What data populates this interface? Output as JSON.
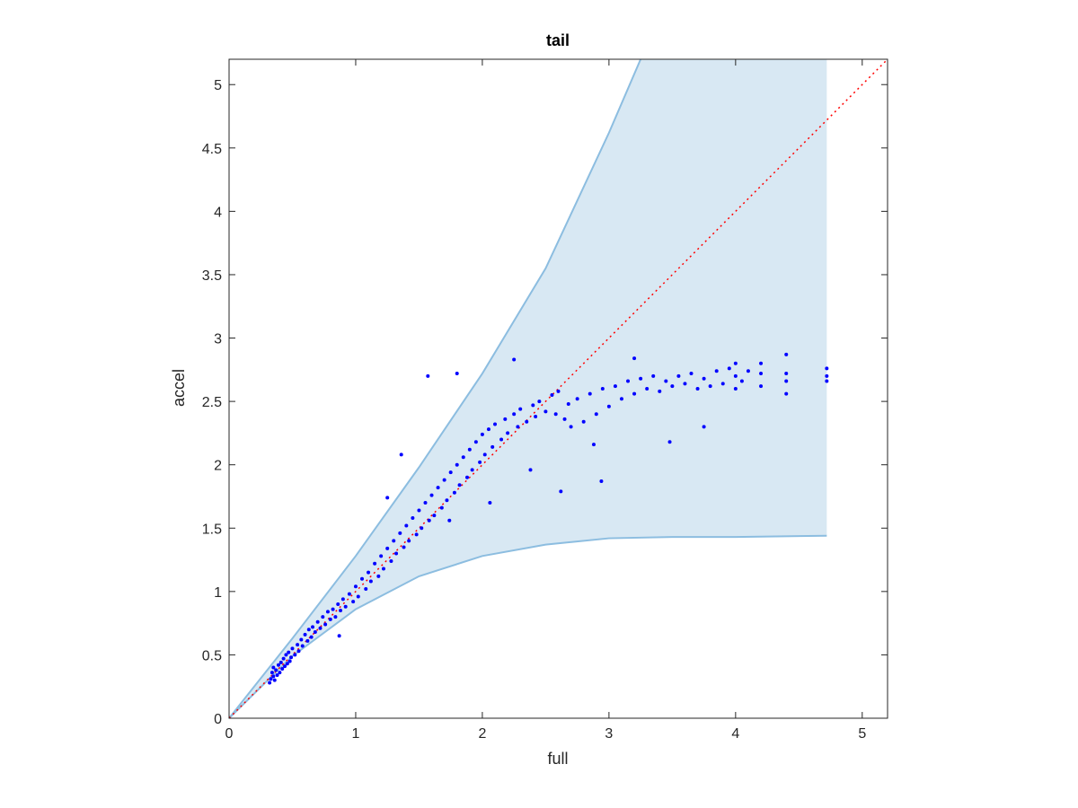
{
  "chart_data": {
    "type": "scatter",
    "title": "tail",
    "xlabel": "full",
    "ylabel": "accel",
    "xlim": [
      0,
      5.2
    ],
    "ylim": [
      0,
      5.2
    ],
    "xticks": [
      "0",
      "1",
      "2",
      "3",
      "4",
      "5"
    ],
    "yticks": [
      "0",
      "0.5",
      "1",
      "1.5",
      "2",
      "2.5",
      "3",
      "3.5",
      "4",
      "4.5",
      "5"
    ],
    "grid": false,
    "band": {
      "upper": [
        [
          0,
          0
        ],
        [
          0.5,
          0.63
        ],
        [
          1,
          1.28
        ],
        [
          1.5,
          1.98
        ],
        [
          2,
          2.72
        ],
        [
          2.5,
          3.55
        ],
        [
          3,
          4.62
        ],
        [
          3.25,
          5.2
        ],
        [
          4.72,
          5.2
        ]
      ],
      "lower": [
        [
          0,
          0
        ],
        [
          0.5,
          0.49
        ],
        [
          1,
          0.86
        ],
        [
          1.5,
          1.12
        ],
        [
          2,
          1.28
        ],
        [
          2.5,
          1.37
        ],
        [
          3,
          1.42
        ],
        [
          3.5,
          1.43
        ],
        [
          4,
          1.43
        ],
        [
          4.72,
          1.44
        ]
      ],
      "fill_color": "#d8e8f3",
      "edge_color": "#8cbde0"
    },
    "reference_line": {
      "from": [
        0,
        0
      ],
      "to": [
        5.2,
        5.2
      ],
      "color": "#ff0000",
      "style": "dotted"
    },
    "series": [
      {
        "color": "#0000ff",
        "points": [
          [
            0.32,
            0.28
          ],
          [
            0.33,
            0.31
          ],
          [
            0.34,
            0.36
          ],
          [
            0.35,
            0.33
          ],
          [
            0.35,
            0.4
          ],
          [
            0.36,
            0.3
          ],
          [
            0.37,
            0.38
          ],
          [
            0.38,
            0.34
          ],
          [
            0.39,
            0.42
          ],
          [
            0.4,
            0.36
          ],
          [
            0.41,
            0.44
          ],
          [
            0.42,
            0.39
          ],
          [
            0.43,
            0.47
          ],
          [
            0.44,
            0.41
          ],
          [
            0.45,
            0.5
          ],
          [
            0.46,
            0.43
          ],
          [
            0.47,
            0.52
          ],
          [
            0.48,
            0.45
          ],
          [
            0.49,
            0.48
          ],
          [
            0.5,
            0.55
          ],
          [
            0.52,
            0.5
          ],
          [
            0.54,
            0.58
          ],
          [
            0.55,
            0.53
          ],
          [
            0.57,
            0.62
          ],
          [
            0.58,
            0.57
          ],
          [
            0.6,
            0.66
          ],
          [
            0.62,
            0.61
          ],
          [
            0.63,
            0.7
          ],
          [
            0.65,
            0.64
          ],
          [
            0.66,
            0.72
          ],
          [
            0.68,
            0.68
          ],
          [
            0.7,
            0.76
          ],
          [
            0.72,
            0.71
          ],
          [
            0.74,
            0.8
          ],
          [
            0.76,
            0.74
          ],
          [
            0.78,
            0.84
          ],
          [
            0.8,
            0.78
          ],
          [
            0.82,
            0.86
          ],
          [
            0.84,
            0.8
          ],
          [
            0.86,
            0.9
          ],
          [
            0.88,
            0.85
          ],
          [
            0.9,
            0.94
          ],
          [
            0.92,
            0.88
          ],
          [
            0.95,
            0.98
          ],
          [
            0.98,
            0.92
          ],
          [
            1.0,
            1.04
          ],
          [
            1.02,
            0.96
          ],
          [
            1.05,
            1.1
          ],
          [
            1.08,
            1.02
          ],
          [
            1.1,
            1.15
          ],
          [
            1.12,
            1.08
          ],
          [
            1.15,
            1.22
          ],
          [
            1.18,
            1.12
          ],
          [
            1.2,
            1.28
          ],
          [
            1.22,
            1.18
          ],
          [
            1.25,
            1.34
          ],
          [
            1.28,
            1.24
          ],
          [
            1.3,
            1.4
          ],
          [
            1.32,
            1.3
          ],
          [
            1.35,
            1.46
          ],
          [
            1.38,
            1.35
          ],
          [
            1.4,
            1.52
          ],
          [
            1.42,
            1.4
          ],
          [
            1.45,
            1.58
          ],
          [
            1.48,
            1.45
          ],
          [
            1.5,
            1.64
          ],
          [
            1.52,
            1.5
          ],
          [
            1.55,
            1.7
          ],
          [
            1.58,
            1.56
          ],
          [
            1.6,
            1.76
          ],
          [
            1.62,
            1.6
          ],
          [
            1.65,
            1.82
          ],
          [
            1.68,
            1.66
          ],
          [
            1.7,
            1.88
          ],
          [
            1.72,
            1.72
          ],
          [
            1.75,
            1.94
          ],
          [
            1.78,
            1.78
          ],
          [
            1.8,
            2.0
          ],
          [
            1.82,
            1.84
          ],
          [
            1.85,
            2.06
          ],
          [
            1.88,
            1.9
          ],
          [
            1.9,
            2.12
          ],
          [
            1.92,
            1.96
          ],
          [
            1.95,
            2.18
          ],
          [
            1.98,
            2.02
          ],
          [
            2.0,
            2.24
          ],
          [
            2.02,
            2.08
          ],
          [
            2.05,
            2.28
          ],
          [
            2.08,
            2.14
          ],
          [
            2.1,
            2.32
          ],
          [
            2.15,
            2.2
          ],
          [
            2.18,
            2.36
          ],
          [
            2.2,
            2.25
          ],
          [
            2.25,
            2.4
          ],
          [
            2.28,
            2.3
          ],
          [
            2.3,
            2.44
          ],
          [
            2.35,
            2.34
          ],
          [
            2.4,
            2.47
          ],
          [
            2.42,
            2.38
          ],
          [
            2.45,
            2.5
          ],
          [
            2.5,
            2.42
          ],
          [
            2.55,
            2.55
          ],
          [
            2.58,
            2.4
          ],
          [
            2.6,
            2.58
          ],
          [
            2.65,
            2.36
          ],
          [
            2.68,
            2.48
          ],
          [
            2.7,
            2.3
          ],
          [
            2.75,
            2.52
          ],
          [
            2.8,
            2.34
          ],
          [
            2.85,
            2.56
          ],
          [
            2.9,
            2.4
          ],
          [
            2.95,
            2.6
          ],
          [
            3.0,
            2.46
          ],
          [
            3.05,
            2.62
          ],
          [
            3.1,
            2.52
          ],
          [
            3.15,
            2.66
          ],
          [
            3.2,
            2.56
          ],
          [
            3.25,
            2.68
          ],
          [
            3.3,
            2.6
          ],
          [
            3.35,
            2.7
          ],
          [
            3.4,
            2.58
          ],
          [
            3.45,
            2.66
          ],
          [
            3.5,
            2.62
          ],
          [
            3.55,
            2.7
          ],
          [
            3.6,
            2.64
          ],
          [
            3.65,
            2.72
          ],
          [
            3.7,
            2.6
          ],
          [
            3.75,
            2.68
          ],
          [
            3.8,
            2.62
          ],
          [
            3.85,
            2.74
          ],
          [
            3.9,
            2.64
          ],
          [
            3.95,
            2.76
          ],
          [
            4.0,
            2.6
          ],
          [
            4.0,
            2.7
          ],
          [
            4.0,
            2.8
          ],
          [
            4.05,
            2.66
          ],
          [
            4.1,
            2.74
          ],
          [
            4.2,
            2.62
          ],
          [
            4.2,
            2.72
          ],
          [
            4.2,
            2.8
          ],
          [
            4.4,
            2.56
          ],
          [
            4.4,
            2.66
          ],
          [
            4.4,
            2.72
          ],
          [
            4.4,
            2.87
          ],
          [
            4.72,
            2.66
          ],
          [
            4.72,
            2.7
          ],
          [
            4.72,
            2.76
          ],
          [
            1.57,
            2.7
          ],
          [
            1.8,
            2.72
          ],
          [
            2.25,
            2.83
          ],
          [
            1.25,
            1.74
          ],
          [
            1.36,
            2.08
          ],
          [
            0.87,
            0.65
          ],
          [
            2.62,
            1.79
          ],
          [
            2.94,
            1.87
          ],
          [
            3.48,
            2.18
          ],
          [
            2.38,
            1.96
          ],
          [
            2.06,
            1.7
          ],
          [
            1.74,
            1.56
          ],
          [
            3.2,
            2.84
          ],
          [
            2.88,
            2.16
          ],
          [
            3.75,
            2.3
          ]
        ]
      }
    ]
  }
}
